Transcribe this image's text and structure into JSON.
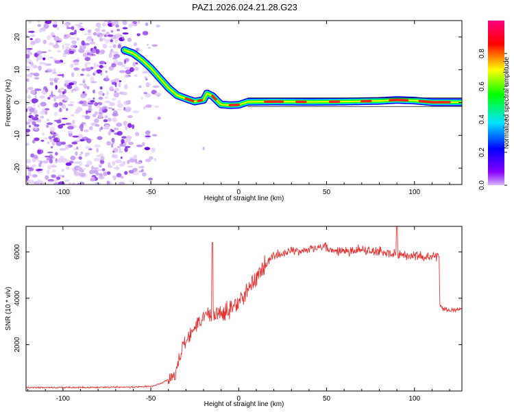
{
  "title": "PAZ1.2026.024.21.28.G23",
  "chart_data": [
    {
      "type": "heatmap",
      "title": "PAZ1.2026.024.21.28.G23",
      "xlabel": "Height of straight line (km)",
      "ylabel": "Frequency (Hz)",
      "xlim": [
        -121,
        127
      ],
      "ylim": [
        -25,
        25
      ],
      "xticks": [
        -100,
        -50,
        0,
        50,
        100
      ],
      "yticks": [
        -20,
        -10,
        0,
        10,
        20
      ],
      "colorbar": {
        "label": "Normalized spectral amplitude",
        "range": [
          0,
          1
        ],
        "ticks": [
          "0.0",
          "0.2",
          "0.4",
          "0.6",
          "0.8"
        ],
        "colors": [
          "#d8b4f8",
          "#8800ff",
          "#0000ff",
          "#00e5ff",
          "#00ff00",
          "#ffff00",
          "#ff0000",
          "#ff0080"
        ]
      },
      "ridge": {
        "x": [
          -65,
          -60,
          -55,
          -50,
          -45,
          -40,
          -35,
          -30,
          -25,
          -20,
          -18,
          -15,
          -12,
          -10,
          -5,
          0,
          5,
          20,
          40,
          60,
          80,
          90,
          100,
          110,
          127
        ],
        "y": [
          16,
          15,
          13,
          10.5,
          7.5,
          4.5,
          2.2,
          1.2,
          0.3,
          0.8,
          2.8,
          2.0,
          0.4,
          -0.6,
          -0.8,
          -0.7,
          0.2,
          0.3,
          0.2,
          0.3,
          0.5,
          0.8,
          0.6,
          0.1,
          0.1
        ]
      },
      "noise_x_range": [
        -121,
        -45
      ]
    },
    {
      "type": "line",
      "xlabel": "Height of straight line (km)",
      "ylabel": "SNR (10 * v/v)",
      "xlim": [
        -121,
        127
      ],
      "ylim": [
        0,
        7100
      ],
      "xticks": [
        -100,
        -50,
        0,
        50,
        100
      ],
      "yticks": [
        2000,
        4000,
        6000
      ],
      "series": [
        {
          "name": "SNR",
          "color": "#e8312f",
          "x": [
            -121,
            -100,
            -80,
            -60,
            -50,
            -45,
            -40,
            -37,
            -35,
            -33,
            -32,
            -30,
            -28,
            -25,
            -20,
            -18,
            -17,
            -15,
            -10,
            -5,
            0,
            5,
            10,
            15,
            20,
            25,
            30,
            35,
            40,
            45,
            50,
            55,
            60,
            65,
            70,
            75,
            80,
            85,
            90,
            95,
            100,
            105,
            110,
            114,
            114.5,
            116,
            120,
            127
          ],
          "y": [
            150,
            150,
            160,
            170,
            200,
            300,
            500,
            700,
            1000,
            1600,
            2000,
            2100,
            2300,
            2700,
            3200,
            3450,
            3300,
            3300,
            3400,
            3550,
            3800,
            4300,
            4900,
            5400,
            5800,
            5950,
            6050,
            6050,
            6100,
            6200,
            6150,
            6050,
            6000,
            6050,
            6100,
            6050,
            6000,
            5950,
            5900,
            5850,
            5850,
            5800,
            5800,
            5800,
            3700,
            3550,
            3500,
            3500
          ]
        }
      ],
      "spikes": [
        {
          "x": -15,
          "y": 6400
        },
        {
          "x": 90,
          "y": 7100
        }
      ]
    }
  ]
}
